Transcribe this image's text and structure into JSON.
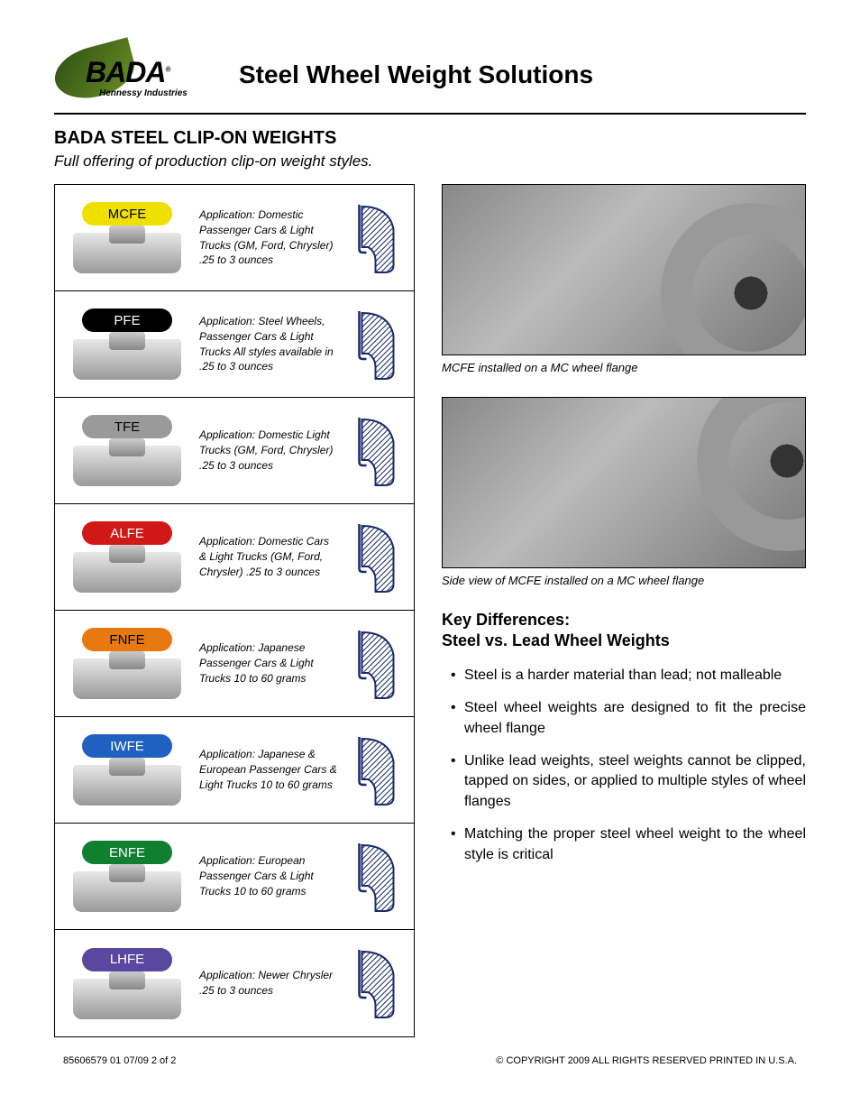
{
  "header": {
    "logo_text": "BADA",
    "logo_subtext": "Hennessy Industries",
    "title": "Steel Wheel Weight Solutions"
  },
  "section": {
    "title": "BADA STEEL CLIP-ON WEIGHTS",
    "subtitle": "Full offering of production clip-on weight styles."
  },
  "weights": [
    {
      "code": "MCFE",
      "pill_bg": "#f0e000",
      "pill_color": "#000000",
      "desc": "Application: Domestic Passenger Cars & Light Trucks (GM, Ford, Chrysler) .25 to 3 ounces"
    },
    {
      "code": "PFE",
      "pill_bg": "#000000",
      "pill_color": "#ffffff",
      "desc": "Application: Steel Wheels, Passenger Cars & Light Trucks All styles available in .25 to 3 ounces"
    },
    {
      "code": "TFE",
      "pill_bg": "#9a9a9a",
      "pill_color": "#000000",
      "desc": "Application: Domestic Light Trucks (GM, Ford, Chrysler) .25 to 3 ounces"
    },
    {
      "code": "ALFE",
      "pill_bg": "#d01818",
      "pill_color": "#ffffff",
      "desc": "Application: Domestic Cars & Light Trucks (GM, Ford, Chrysler) .25 to 3 ounces"
    },
    {
      "code": "FNFE",
      "pill_bg": "#e87810",
      "pill_color": "#000000",
      "desc": "Application: Japanese Passenger Cars & Light Trucks 10 to 60 grams"
    },
    {
      "code": "IWFE",
      "pill_bg": "#2060c0",
      "pill_color": "#ffffff",
      "desc": "Application: Japanese & European Passenger Cars & Light Trucks 10 to 60 grams"
    },
    {
      "code": "ENFE",
      "pill_bg": "#108030",
      "pill_color": "#ffffff",
      "desc": "Application: European Passenger Cars & Light Trucks 10 to 60 grams"
    },
    {
      "code": "LHFE",
      "pill_bg": "#5848a0",
      "pill_color": "#ffffff",
      "desc": "Application: Newer Chrysler .25 to 3 ounces"
    }
  ],
  "photos": [
    {
      "caption": "MCFE installed on a MC wheel flange"
    },
    {
      "caption": "Side view of MCFE installed on a MC wheel flange"
    }
  ],
  "key_diff": {
    "title_line1": "Key Differences:",
    "title_line2": "Steel vs. Lead Wheel Weights",
    "items": [
      "Steel is a harder material than lead; not malleable",
      "Steel wheel weights are designed to fit the precise wheel flange",
      "Unlike lead weights, steel weights cannot be clipped, tapped on sides, or applied to multiple styles of wheel flanges",
      "Matching the proper steel wheel weight to the wheel style is critical"
    ]
  },
  "footer": {
    "left": "85606579 01  07/09   2 of 2",
    "right": "© COPYRIGHT 2009 ALL RIGHTS RESERVED   PRINTED IN U.S.A."
  },
  "profile_stroke": "#1a2a6c"
}
